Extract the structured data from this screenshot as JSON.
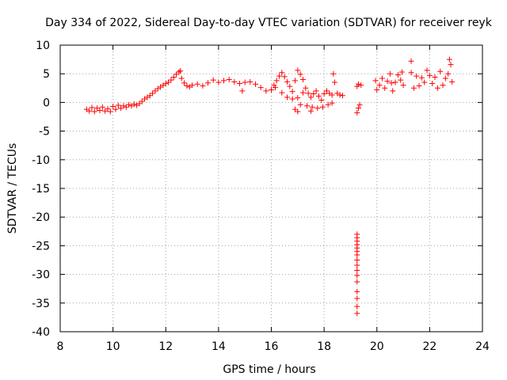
{
  "chart_data": {
    "type": "scatter",
    "title": "Day 334 of 2022, Sidereal Day-to-day VTEC variation (SDTVAR) for receiver reyk",
    "xlabel": "GPS time / hours",
    "ylabel": "SDTVAR / TECUs",
    "xlim": [
      8,
      24
    ],
    "ylim": [
      -40,
      10
    ],
    "xticks": [
      8,
      10,
      12,
      14,
      16,
      18,
      20,
      22,
      24
    ],
    "yticks": [
      10,
      5,
      0,
      -5,
      -10,
      -15,
      -20,
      -25,
      -30,
      -35,
      -40
    ],
    "xtick_labels": [
      "8",
      "10",
      "12",
      "14",
      "16",
      "18",
      "20",
      "22",
      "24"
    ],
    "ytick_labels": [
      "10",
      "5",
      "0",
      "-5",
      "-10",
      "-15",
      "-20",
      "-25",
      "-30",
      "-35",
      "-40"
    ],
    "grid": true,
    "legend": "none",
    "marker": "plus",
    "series": [
      {
        "name": "reyk",
        "color": "#ff0000",
        "points": [
          [
            9.0,
            -1.2
          ],
          [
            9.1,
            -1.5
          ],
          [
            9.2,
            -0.9
          ],
          [
            9.3,
            -1.6
          ],
          [
            9.4,
            -1.0
          ],
          [
            9.5,
            -1.4
          ],
          [
            9.6,
            -0.8
          ],
          [
            9.7,
            -1.5
          ],
          [
            9.8,
            -1.1
          ],
          [
            9.9,
            -1.6
          ],
          [
            10.0,
            -0.7
          ],
          [
            10.1,
            -1.2
          ],
          [
            10.2,
            -0.5
          ],
          [
            10.3,
            -1.0
          ],
          [
            10.4,
            -0.6
          ],
          [
            10.5,
            -0.8
          ],
          [
            10.6,
            -0.4
          ],
          [
            10.7,
            -0.6
          ],
          [
            10.8,
            -0.3
          ],
          [
            10.9,
            -0.5
          ],
          [
            11.0,
            -0.2
          ],
          [
            11.1,
            0.2
          ],
          [
            11.2,
            0.6
          ],
          [
            11.3,
            0.9
          ],
          [
            11.4,
            1.2
          ],
          [
            11.5,
            1.6
          ],
          [
            11.6,
            2.0
          ],
          [
            11.7,
            2.4
          ],
          [
            11.8,
            2.7
          ],
          [
            11.9,
            3.0
          ],
          [
            12.0,
            3.3
          ],
          [
            12.1,
            3.5
          ],
          [
            12.2,
            3.9
          ],
          [
            12.3,
            4.4
          ],
          [
            12.4,
            4.9
          ],
          [
            12.5,
            5.3
          ],
          [
            12.55,
            5.5
          ],
          [
            12.6,
            4.2
          ],
          [
            12.7,
            3.4
          ],
          [
            12.8,
            2.9
          ],
          [
            12.9,
            2.7
          ],
          [
            13.0,
            3.0
          ],
          [
            13.2,
            3.2
          ],
          [
            13.4,
            2.9
          ],
          [
            13.6,
            3.4
          ],
          [
            13.8,
            3.9
          ],
          [
            14.0,
            3.5
          ],
          [
            14.2,
            3.8
          ],
          [
            14.4,
            4.0
          ],
          [
            14.6,
            3.6
          ],
          [
            14.8,
            3.3
          ],
          [
            14.9,
            2.0
          ],
          [
            15.0,
            3.5
          ],
          [
            15.2,
            3.6
          ],
          [
            15.4,
            3.2
          ],
          [
            15.6,
            2.6
          ],
          [
            15.8,
            2.0
          ],
          [
            16.0,
            2.2
          ],
          [
            16.1,
            3.0
          ],
          [
            16.2,
            3.8
          ],
          [
            16.3,
            4.6
          ],
          [
            16.4,
            5.2
          ],
          [
            16.5,
            4.5
          ],
          [
            16.6,
            3.6
          ],
          [
            16.7,
            2.8
          ],
          [
            16.8,
            1.9
          ],
          [
            16.9,
            3.8
          ],
          [
            17.0,
            5.6
          ],
          [
            17.1,
            4.9
          ],
          [
            17.2,
            4.0
          ],
          [
            17.3,
            2.5
          ],
          [
            17.4,
            1.6
          ],
          [
            17.5,
            0.9
          ],
          [
            17.6,
            1.5
          ],
          [
            17.7,
            2.0
          ],
          [
            17.8,
            1.1
          ],
          [
            17.9,
            0.4
          ],
          [
            18.0,
            1.5
          ],
          [
            18.1,
            2.0
          ],
          [
            18.2,
            1.6
          ],
          [
            18.3,
            1.3
          ],
          [
            18.35,
            5.0
          ],
          [
            18.4,
            3.5
          ],
          [
            18.5,
            1.6
          ],
          [
            18.6,
            1.3
          ],
          [
            18.7,
            1.2
          ],
          [
            16.15,
            2.6
          ],
          [
            16.4,
            1.7
          ],
          [
            16.6,
            0.9
          ],
          [
            16.8,
            0.6
          ],
          [
            17.0,
            0.8
          ],
          [
            17.2,
            1.7
          ],
          [
            16.9,
            -1.2
          ],
          [
            17.1,
            -0.4
          ],
          [
            17.35,
            -0.6
          ],
          [
            17.55,
            -0.8
          ],
          [
            17.75,
            -1.0
          ],
          [
            17.95,
            -0.8
          ],
          [
            18.15,
            -0.4
          ],
          [
            18.3,
            -0.1
          ],
          [
            17.0,
            -1.6
          ],
          [
            17.5,
            -1.5
          ],
          [
            19.25,
            -1.8
          ],
          [
            19.3,
            -1.0
          ],
          [
            19.35,
            -0.4
          ],
          [
            19.25,
            2.8
          ],
          [
            19.3,
            3.2
          ],
          [
            19.4,
            3.0
          ],
          [
            19.25,
            -23.0
          ],
          [
            19.25,
            -23.6
          ],
          [
            19.25,
            -24.2
          ],
          [
            19.25,
            -24.8
          ],
          [
            19.25,
            -25.4
          ],
          [
            19.25,
            -26.0
          ],
          [
            19.25,
            -26.6
          ],
          [
            19.25,
            -27.5
          ],
          [
            19.25,
            -28.4
          ],
          [
            19.25,
            -29.3
          ],
          [
            19.25,
            -30.2
          ],
          [
            19.25,
            -31.3
          ],
          [
            19.25,
            -33.0
          ],
          [
            19.25,
            -34.2
          ],
          [
            19.25,
            -35.6
          ],
          [
            19.25,
            -36.8
          ],
          [
            19.95,
            3.8
          ],
          [
            20.0,
            2.2
          ],
          [
            20.1,
            3.0
          ],
          [
            20.2,
            4.2
          ],
          [
            20.3,
            2.5
          ],
          [
            20.4,
            3.7
          ],
          [
            20.5,
            5.0
          ],
          [
            20.55,
            3.4
          ],
          [
            20.6,
            2.0
          ],
          [
            20.7,
            3.5
          ],
          [
            20.8,
            4.8
          ],
          [
            20.9,
            3.9
          ],
          [
            20.95,
            5.3
          ],
          [
            21.0,
            3.0
          ],
          [
            21.3,
            7.2
          ],
          [
            21.3,
            5.2
          ],
          [
            21.4,
            2.5
          ],
          [
            21.5,
            4.6
          ],
          [
            21.6,
            2.9
          ],
          [
            21.7,
            4.3
          ],
          [
            21.8,
            3.5
          ],
          [
            21.9,
            5.6
          ],
          [
            22.0,
            4.7
          ],
          [
            22.1,
            3.3
          ],
          [
            22.2,
            4.4
          ],
          [
            22.3,
            2.5
          ],
          [
            22.4,
            5.4
          ],
          [
            22.5,
            3.0
          ],
          [
            22.6,
            4.2
          ],
          [
            22.7,
            5.0
          ],
          [
            22.75,
            7.5
          ],
          [
            22.8,
            6.6
          ],
          [
            22.85,
            3.6
          ]
        ]
      }
    ]
  }
}
